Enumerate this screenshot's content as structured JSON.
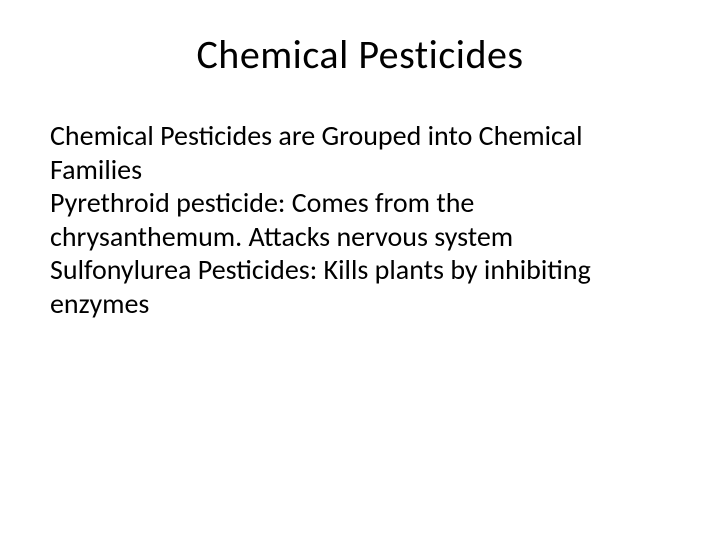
{
  "slide": {
    "title": "Chemical Pesticides",
    "body_line1": "Chemical Pesticides are Grouped into Chemical Families",
    "body_line2": "Pyrethroid pesticide:  Comes from the chrysanthemum. Attacks nervous system",
    "body_line3": "Sulfonylurea Pesticides: Kills plants by inhibiting enzymes",
    "background_color": "#ffffff",
    "text_color": "#000000",
    "title_fontsize": 40,
    "body_fontsize": 28,
    "font_family": "Calibri"
  }
}
